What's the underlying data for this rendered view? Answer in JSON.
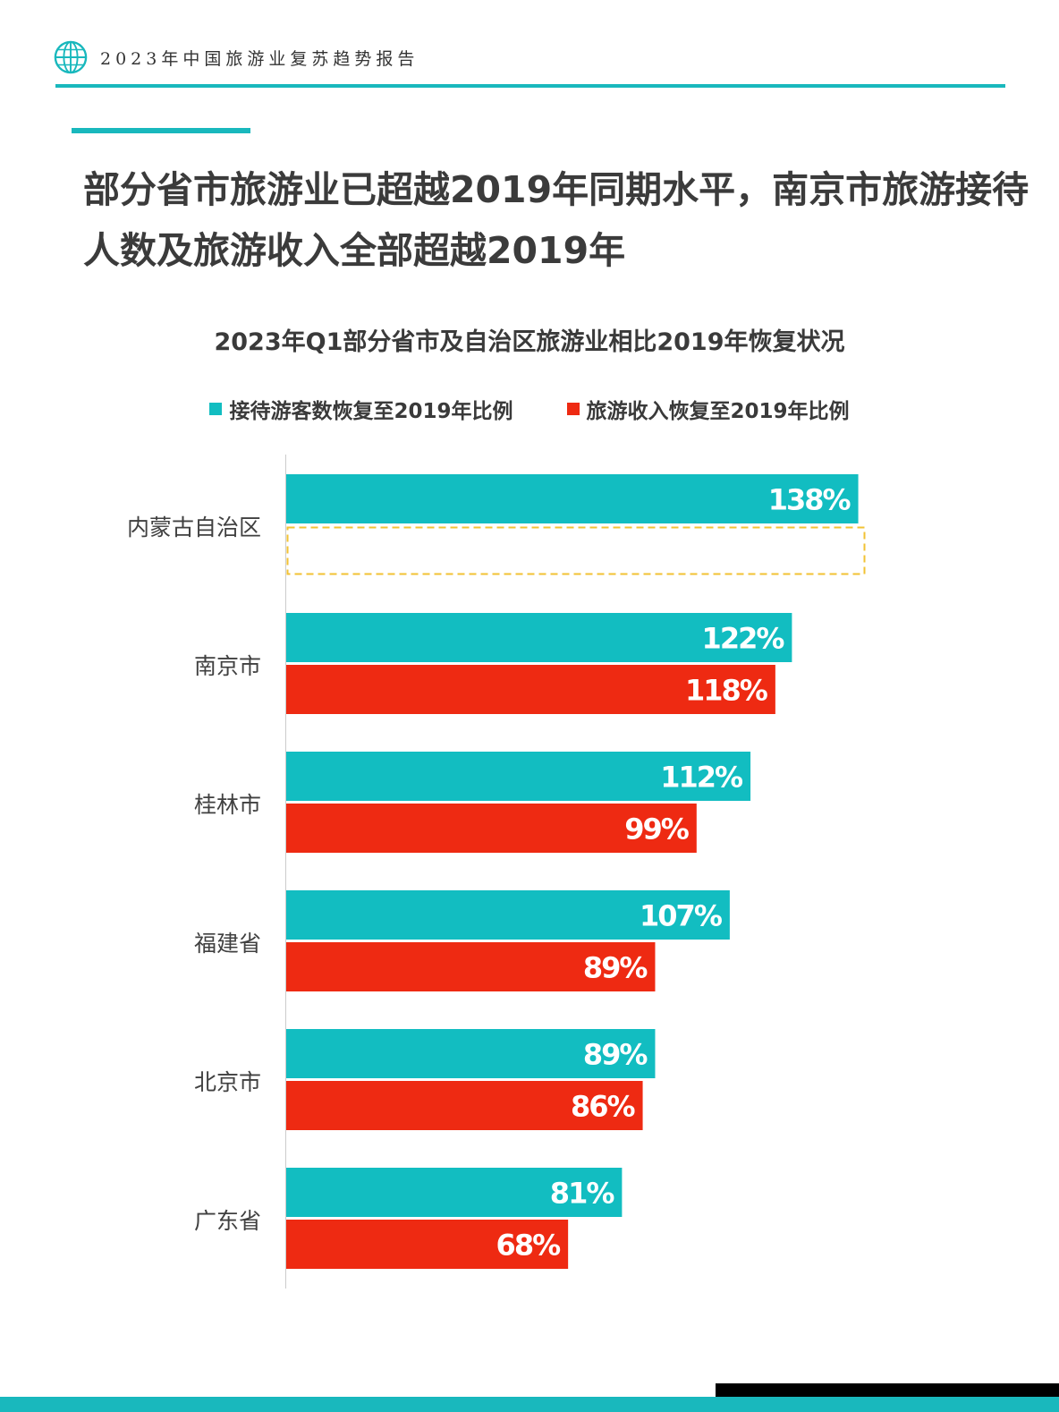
{
  "header": {
    "title": "2023年中国旅游业复苏趋势报告",
    "logo_icon": "globe-icon"
  },
  "headline": "部分省市旅游业已超越2019年同期水平，南京市旅游接待人数及旅游收入全部超越2019年",
  "colors": {
    "accent": "#19b8bd",
    "visitors": "#12bdc1",
    "revenue": "#ee2a12",
    "missing_outline": "#f2c233"
  },
  "chart_data": {
    "type": "bar",
    "orientation": "horizontal",
    "title": "2023年Q1部分省市及自治区旅游业相比2019年恢复状况",
    "categories": [
      "内蒙古自治区",
      "南京市",
      "桂林市",
      "福建省",
      "北京市",
      "广东省"
    ],
    "series": [
      {
        "name": "接待游客数恢复至2019年比例",
        "values": [
          138,
          122,
          112,
          107,
          89,
          81
        ],
        "labels": [
          "138%",
          "122%",
          "112%",
          "107%",
          "89%",
          "81%"
        ]
      },
      {
        "name": "旅游收入恢复至2019年比例",
        "values": [
          null,
          118,
          99,
          89,
          86,
          68
        ],
        "labels": [
          "",
          "118%",
          "99%",
          "89%",
          "86%",
          "68%"
        ]
      }
    ],
    "xlim": [
      0,
      145
    ],
    "grid": false,
    "legend": "top"
  }
}
